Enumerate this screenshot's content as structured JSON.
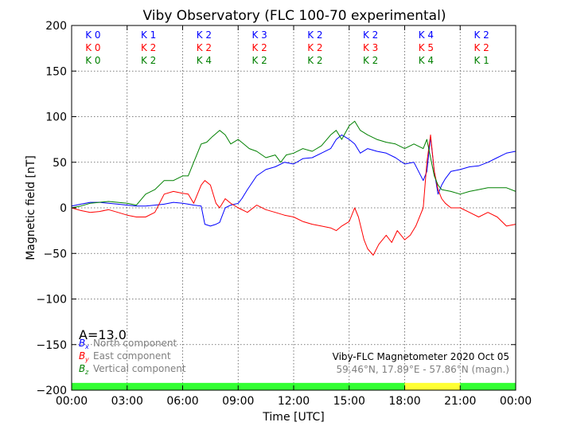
{
  "chart_data": {
    "type": "line",
    "title": "Viby Observatory (FLC 100-70 experimental)",
    "xlabel": "Time [UTC]",
    "ylabel": "Magnetic field [nT]",
    "xlim": [
      0,
      24
    ],
    "ylim": [
      -200,
      200
    ],
    "x_tick_labels": [
      "00:00",
      "03:00",
      "06:00",
      "09:00",
      "12:00",
      "15:00",
      "18:00",
      "21:00",
      "00:00"
    ],
    "y_ticks": [
      -200,
      -150,
      -100,
      -50,
      0,
      50,
      100,
      150,
      200
    ],
    "y_tick_labels": [
      "−200",
      "−150",
      "−100",
      "−50",
      "0",
      "50",
      "100",
      "150",
      "200"
    ],
    "grid": true,
    "legend_position": "lower-left",
    "series": [
      {
        "name": "North component",
        "symbol": "B",
        "subscript": "x",
        "color": "#0000ff",
        "x": [
          0,
          0.5,
          1,
          1.5,
          2,
          2.5,
          3,
          3.5,
          4,
          4.5,
          5,
          5.5,
          6,
          6.3,
          6.6,
          7,
          7.2,
          7.5,
          7.8,
          8,
          8.3,
          8.6,
          9,
          9.2,
          9.5,
          10,
          10.5,
          11,
          11.5,
          12,
          12.5,
          13,
          13.5,
          14,
          14.3,
          14.6,
          15,
          15.3,
          15.6,
          16,
          16.5,
          17,
          17.5,
          18,
          18.5,
          19,
          19.2,
          19.4,
          19.6,
          19.8,
          20,
          20.2,
          20.5,
          21,
          21.5,
          22,
          22.5,
          23,
          23.5,
          24
        ],
        "y": [
          2,
          4,
          6,
          6,
          5,
          4,
          3,
          2,
          2,
          3,
          4,
          6,
          5,
          4,
          3,
          2,
          -18,
          -20,
          -18,
          -16,
          0,
          3,
          5,
          10,
          20,
          35,
          42,
          45,
          50,
          48,
          54,
          55,
          60,
          65,
          75,
          80,
          75,
          70,
          60,
          65,
          62,
          60,
          55,
          48,
          50,
          30,
          40,
          78,
          40,
          15,
          25,
          32,
          40,
          42,
          45,
          46,
          50,
          55,
          60,
          62
        ],
        "k_indices": [
          "K 0",
          "K 1",
          "K 2",
          "K 3",
          "K 2",
          "K 2",
          "K 4",
          "K 2"
        ]
      },
      {
        "name": "East component",
        "symbol": "B",
        "subscript": "y",
        "color": "#ff0000",
        "x": [
          0,
          0.5,
          1,
          1.5,
          2,
          2.5,
          3,
          3.5,
          4,
          4.5,
          5,
          5.5,
          6,
          6.3,
          6.6,
          7,
          7.2,
          7.5,
          7.8,
          8,
          8.3,
          8.6,
          9,
          9.5,
          10,
          10.5,
          11,
          11.5,
          12,
          12.5,
          13,
          13.5,
          14,
          14.3,
          14.6,
          15,
          15.3,
          15.5,
          15.8,
          16,
          16.3,
          16.6,
          17,
          17.3,
          17.6,
          18,
          18.3,
          18.6,
          19,
          19.2,
          19.4,
          19.6,
          19.8,
          20,
          20.2,
          20.5,
          21,
          21.5,
          22,
          22.5,
          23,
          23.5,
          24
        ],
        "y": [
          0,
          -3,
          -5,
          -4,
          -2,
          -5,
          -8,
          -10,
          -10,
          -5,
          15,
          18,
          16,
          15,
          5,
          25,
          30,
          25,
          5,
          0,
          10,
          5,
          0,
          -5,
          3,
          -2,
          -5,
          -8,
          -10,
          -15,
          -18,
          -20,
          -22,
          -25,
          -20,
          -15,
          0,
          -10,
          -35,
          -45,
          -52,
          -40,
          -30,
          -38,
          -25,
          -35,
          -30,
          -20,
          0,
          50,
          80,
          40,
          20,
          10,
          5,
          0,
          0,
          -5,
          -10,
          -5,
          -10,
          -20,
          -18
        ],
        "k_indices": [
          "K 0",
          "K 2",
          "K 2",
          "K 2",
          "K 2",
          "K 3",
          "K 5",
          "K 2"
        ]
      },
      {
        "name": "Vertical component",
        "symbol": "B",
        "subscript": "z",
        "color": "#008000",
        "x": [
          0,
          0.5,
          1,
          1.5,
          2,
          2.5,
          3,
          3.5,
          4,
          4.5,
          5,
          5.5,
          6,
          6.3,
          6.6,
          7,
          7.3,
          7.6,
          8,
          8.3,
          8.6,
          9,
          9.3,
          9.6,
          10,
          10.5,
          11,
          11.3,
          11.6,
          12,
          12.5,
          13,
          13.5,
          14,
          14.3,
          14.6,
          15,
          15.3,
          15.6,
          16,
          16.5,
          17,
          17.5,
          18,
          18.5,
          19,
          19.2,
          19.4,
          19.6,
          19.8,
          20,
          20.5,
          21,
          21.5,
          22,
          22.5,
          23,
          23.5,
          24
        ],
        "y": [
          0,
          2,
          5,
          6,
          7,
          6,
          5,
          3,
          15,
          20,
          30,
          30,
          35,
          35,
          50,
          70,
          72,
          78,
          85,
          80,
          70,
          75,
          70,
          65,
          62,
          55,
          58,
          50,
          58,
          60,
          65,
          62,
          68,
          80,
          85,
          75,
          90,
          95,
          85,
          80,
          75,
          72,
          70,
          65,
          70,
          65,
          75,
          55,
          35,
          25,
          20,
          18,
          15,
          18,
          20,
          22,
          22,
          22,
          18
        ],
        "k_indices": [
          "K 0",
          "K 2",
          "K 4",
          "K 2",
          "K 2",
          "K 2",
          "K 4",
          "K 1"
        ]
      }
    ],
    "activity_bar": [
      {
        "start": 0,
        "end": 18,
        "color": "#33ff33"
      },
      {
        "start": 18,
        "end": 21,
        "color": "#ffff33"
      },
      {
        "start": 21,
        "end": 24,
        "color": "#33ff33"
      }
    ],
    "annotations": {
      "a_index": "A=13.0",
      "magnetometer": "Viby-FLC Magnetometer 2020 Oct 05",
      "coordinates": "59.46°N, 17.89°E - 57.86°N (magn.)"
    }
  }
}
